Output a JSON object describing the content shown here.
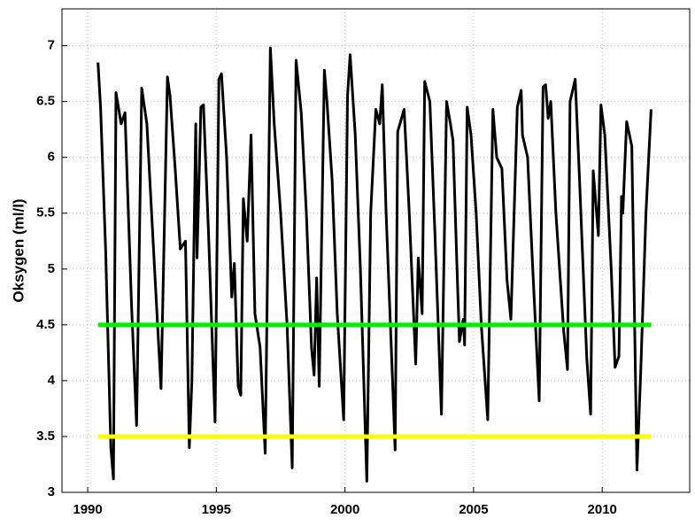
{
  "chart_data": {
    "type": "line",
    "ylabel": "Oksygen (ml/l)",
    "xlim": [
      1989,
      2013.4
    ],
    "xticks": [
      1990,
      1995,
      2000,
      2005,
      2010
    ],
    "ylim": [
      3,
      7.33
    ],
    "yticks": [
      3,
      3.5,
      4,
      4.5,
      5,
      5.5,
      6,
      6.5,
      7
    ],
    "grid": true,
    "series": [
      {
        "color": "#000000",
        "x": [
          1990.4,
          1990.5,
          1990.7,
          1990.9,
          1991.0,
          1991.1,
          1991.3,
          1991.45,
          1991.5,
          1991.7,
          1991.9,
          1992.1,
          1992.3,
          1992.6,
          1992.85,
          1993.1,
          1993.2,
          1993.4,
          1993.6,
          1993.8,
          1993.95,
          1994.05,
          1994.2,
          1994.25,
          1994.4,
          1994.5,
          1994.7,
          1994.95,
          1995.1,
          1995.2,
          1995.4,
          1995.6,
          1995.7,
          1995.85,
          1995.95,
          1996.05,
          1996.2,
          1996.35,
          1996.5,
          1996.7,
          1996.9,
          1997.1,
          1997.25,
          1997.5,
          1997.75,
          1997.95,
          1998.1,
          1998.3,
          1998.5,
          1998.7,
          1998.8,
          1998.9,
          1999.0,
          1999.2,
          1999.3,
          1999.5,
          1999.7,
          1999.95,
          2000.1,
          2000.2,
          2000.4,
          2000.6,
          2000.85,
          2001.0,
          2001.2,
          2001.35,
          2001.45,
          2001.6,
          2001.85,
          2001.95,
          2002.05,
          2002.3,
          2002.5,
          2002.75,
          2002.85,
          2003.0,
          2003.1,
          2003.3,
          2003.5,
          2003.75,
          2003.95,
          2004.1,
          2004.2,
          2004.35,
          2004.45,
          2004.6,
          2004.65,
          2004.75,
          2004.9,
          2005.1,
          2005.3,
          2005.55,
          2005.75,
          2005.9,
          2006.1,
          2006.3,
          2006.45,
          2006.7,
          2006.85,
          2006.9,
          2007.1,
          2007.3,
          2007.55,
          2007.7,
          2007.8,
          2007.9,
          2008.0,
          2008.2,
          2008.5,
          2008.65,
          2008.75,
          2008.95,
          2009.1,
          2009.4,
          2009.55,
          2009.65,
          2009.85,
          2009.95,
          2010.1,
          2010.35,
          2010.5,
          2010.65,
          2010.75,
          2010.8,
          2010.95,
          2011.15,
          2011.35,
          2011.5,
          2011.7,
          2011.9
        ],
        "values": [
          6.85,
          6.45,
          5.15,
          3.4,
          3.12,
          6.58,
          6.3,
          6.4,
          6.05,
          4.7,
          3.6,
          6.62,
          6.3,
          5.0,
          3.93,
          6.72,
          6.55,
          5.9,
          5.18,
          5.25,
          3.4,
          4.0,
          6.3,
          5.1,
          6.45,
          6.47,
          5.3,
          3.63,
          6.7,
          6.75,
          6.0,
          4.75,
          5.05,
          3.95,
          3.87,
          5.63,
          5.25,
          6.2,
          4.6,
          4.3,
          3.35,
          6.98,
          6.3,
          5.5,
          4.5,
          3.22,
          6.87,
          6.4,
          5.5,
          4.3,
          4.05,
          4.92,
          3.95,
          6.78,
          6.5,
          5.8,
          4.6,
          3.65,
          6.55,
          6.92,
          6.2,
          5.0,
          3.1,
          5.5,
          6.43,
          6.3,
          6.65,
          5.5,
          4.0,
          3.38,
          6.23,
          6.43,
          5.5,
          4.15,
          5.1,
          4.6,
          6.68,
          6.5,
          5.3,
          3.7,
          6.5,
          6.3,
          6.15,
          5.05,
          4.35,
          4.55,
          4.32,
          6.45,
          6.2,
          5.5,
          4.5,
          3.65,
          6.43,
          6.0,
          5.9,
          4.9,
          4.55,
          6.45,
          6.6,
          6.2,
          6.0,
          5.0,
          3.82,
          6.63,
          6.65,
          6.35,
          6.5,
          5.5,
          4.45,
          4.1,
          6.5,
          6.7,
          5.9,
          4.2,
          3.7,
          5.88,
          5.3,
          6.47,
          6.2,
          5.0,
          4.12,
          4.22,
          5.65,
          5.5,
          6.32,
          6.1,
          3.2,
          4.1,
          5.5,
          6.43
        ]
      },
      {
        "color": "#00ee00",
        "x": [
          1990.4,
          2011.9
        ],
        "values": [
          4.5,
          4.5
        ]
      },
      {
        "color": "#ffff00",
        "x": [
          1990.4,
          2011.9
        ],
        "values": [
          3.5,
          3.5
        ]
      }
    ]
  }
}
